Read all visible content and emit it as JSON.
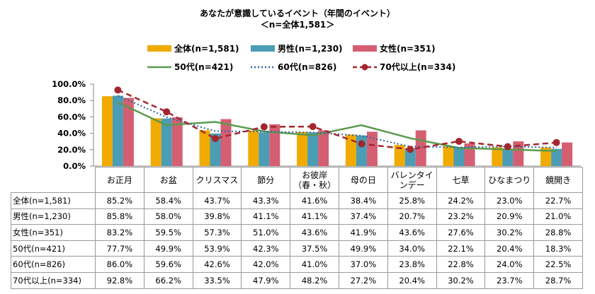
{
  "chart_data": {
    "type": "bar",
    "title": "あなたが意識しているイベント（年間のイベント）",
    "subtitle": "＜n=全体1,581＞",
    "categories": [
      "お正月",
      "お盆",
      "クリスマス",
      "節分",
      "お彼岸\n（春・秋）",
      "母の日",
      "バレンタイ\nンデー",
      "七草",
      "ひなまつり",
      "鏡開き"
    ],
    "ylim": [
      0,
      100
    ],
    "yticks": [
      "0.0%",
      "20.0%",
      "40.0%",
      "60.0%",
      "80.0%",
      "100.0%"
    ],
    "legend_placement": "top",
    "series": [
      {
        "name": "全体(n=1,581)",
        "kind": "bar",
        "color": "#f0aa00",
        "values": [
          85.2,
          58.4,
          43.7,
          43.3,
          41.6,
          38.4,
          25.8,
          24.2,
          23.0,
          22.7
        ]
      },
      {
        "name": "男性(n=1,230)",
        "kind": "bar",
        "color": "#4a9db5",
        "values": [
          85.8,
          58.0,
          39.8,
          41.1,
          41.1,
          37.4,
          20.7,
          23.2,
          20.9,
          21.0
        ]
      },
      {
        "name": "女性(n=351)",
        "kind": "bar",
        "color": "#d45f72",
        "values": [
          83.2,
          59.5,
          57.3,
          51.0,
          43.6,
          41.9,
          43.6,
          27.6,
          30.2,
          28.8
        ]
      },
      {
        "name": "50代(n=421)",
        "kind": "line-solid",
        "color": "#5b9a4e",
        "values": [
          77.7,
          49.9,
          53.9,
          42.3,
          37.5,
          49.9,
          34.0,
          22.1,
          20.4,
          18.3
        ]
      },
      {
        "name": "60代(n=826)",
        "kind": "line-dotted",
        "color": "#2f63a6",
        "values": [
          86.0,
          59.6,
          42.6,
          42.0,
          41.0,
          37.0,
          23.8,
          22.8,
          24.0,
          22.5
        ]
      },
      {
        "name": "70代以上(n=334)",
        "kind": "line-dashed-marker",
        "color": "#a3262f",
        "values": [
          92.8,
          66.2,
          33.5,
          47.9,
          48.2,
          27.2,
          20.4,
          30.2,
          23.7,
          28.7
        ]
      }
    ],
    "table_rows": [
      {
        "label": "全体(n=1,581)",
        "cells": [
          "85.2%",
          "58.4%",
          "43.7%",
          "43.3%",
          "41.6%",
          "38.4%",
          "25.8%",
          "24.2%",
          "23.0%",
          "22.7%"
        ]
      },
      {
        "label": "男性(n=1,230)",
        "cells": [
          "85.8%",
          "58.0%",
          "39.8%",
          "41.1%",
          "41.1%",
          "37.4%",
          "20.7%",
          "23.2%",
          "20.9%",
          "21.0%"
        ]
      },
      {
        "label": "女性(n=351)",
        "cells": [
          "83.2%",
          "59.5%",
          "57.3%",
          "51.0%",
          "43.6%",
          "41.9%",
          "43.6%",
          "27.6%",
          "30.2%",
          "28.8%"
        ]
      },
      {
        "label": "50代(n=421)",
        "cells": [
          "77.7%",
          "49.9%",
          "53.9%",
          "42.3%",
          "37.5%",
          "49.9%",
          "34.0%",
          "22.1%",
          "20.4%",
          "18.3%"
        ]
      },
      {
        "label": "60代(n=826)",
        "cells": [
          "86.0%",
          "59.6%",
          "42.6%",
          "42.0%",
          "41.0%",
          "37.0%",
          "23.8%",
          "22.8%",
          "24.0%",
          "22.5%"
        ]
      },
      {
        "label": "70代以上(n=334)",
        "cells": [
          "92.8%",
          "66.2%",
          "33.5%",
          "47.9%",
          "48.2%",
          "27.2%",
          "20.4%",
          "30.2%",
          "23.7%",
          "28.7%"
        ]
      }
    ]
  }
}
